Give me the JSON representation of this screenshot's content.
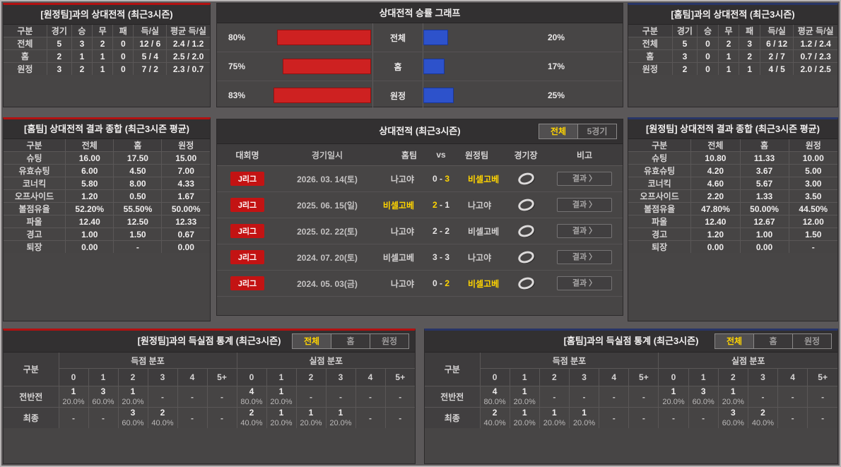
{
  "colors": {
    "red_accent": "#b31111",
    "blue_accent": "#283567",
    "red_bar": "#ce2121",
    "blue_bar": "#2d52cb",
    "highlight_yellow": "#ffd400",
    "league_badge_red": "#c31313"
  },
  "icons": {
    "chevron_right": "〉",
    "stadium": "stadium-ring"
  },
  "panels": {
    "vs_away_record": {
      "title": "[원정팀]과의 상대전적 (최근3시즌)",
      "headers": [
        "구분",
        "경기",
        "승",
        "무",
        "패",
        "득/실",
        "평균 득/실"
      ],
      "rows": [
        [
          "전체",
          "5",
          "3",
          "2",
          "0",
          "12 / 6",
          "2.4 / 1.2"
        ],
        [
          "홈",
          "2",
          "1",
          "1",
          "0",
          "5 / 4",
          "2.5 / 2.0"
        ],
        [
          "원정",
          "3",
          "2",
          "1",
          "0",
          "7 / 2",
          "2.3 / 0.7"
        ]
      ]
    },
    "winrate_graph": {
      "title": "상대전적 승률 그래프",
      "rows": [
        {
          "label": "전체",
          "left_label": "80%",
          "left_value": 80,
          "right_label": "20%",
          "right_value": 20
        },
        {
          "label": "홈",
          "left_label": "75%",
          "left_value": 75,
          "right_label": "17%",
          "right_value": 17
        },
        {
          "label": "원정",
          "left_label": "83%",
          "left_value": 83,
          "right_label": "25%",
          "right_value": 25
        }
      ]
    },
    "vs_home_record": {
      "title": "[홈팀]과의 상대전적 (최근3시즌)",
      "headers": [
        "구분",
        "경기",
        "승",
        "무",
        "패",
        "득/실",
        "평균 득/실"
      ],
      "rows": [
        [
          "전체",
          "5",
          "0",
          "2",
          "3",
          "6 / 12",
          "1.2 / 2.4"
        ],
        [
          "홈",
          "3",
          "0",
          "1",
          "2",
          "2 / 7",
          "0.7 / 2.3"
        ],
        [
          "원정",
          "2",
          "0",
          "1",
          "1",
          "4 / 5",
          "2.0 / 2.5"
        ]
      ]
    },
    "home_summary": {
      "title": "[홈팀] 상대전적 결과 종합 (최근3시즌 평균)",
      "headers": [
        "구분",
        "전체",
        "홈",
        "원정"
      ],
      "rows": [
        [
          "슈팅",
          "16.00",
          "17.50",
          "15.00"
        ],
        [
          "유효슈팅",
          "6.00",
          "4.50",
          "7.00"
        ],
        [
          "코너킥",
          "5.80",
          "8.00",
          "4.33"
        ],
        [
          "오프사이드",
          "1.20",
          "0.50",
          "1.67"
        ],
        [
          "볼점유율",
          "52.20%",
          "55.50%",
          "50.00%"
        ],
        [
          "파울",
          "12.40",
          "12.50",
          "12.33"
        ],
        [
          "경고",
          "1.00",
          "1.50",
          "0.67"
        ],
        [
          "퇴장",
          "0.00",
          "-",
          "0.00"
        ]
      ]
    },
    "h2h": {
      "title": "상대전적 (최근3시즌)",
      "tabs": [
        {
          "label": "전체",
          "active": true
        },
        {
          "label": "5경기",
          "active": false
        }
      ],
      "headers": {
        "league": "대회명",
        "date": "경기일시",
        "home": "홈팀",
        "vs": "vs",
        "away": "원정팀",
        "stadium": "경기장",
        "note": "비고"
      },
      "result_button": "결과",
      "rows": [
        {
          "league": "J리그",
          "date": "2026. 03. 14(토)",
          "home": "나고야",
          "home_score": "0",
          "away_score": "3",
          "away": "비셀고베",
          "winner": "away"
        },
        {
          "league": "J리그",
          "date": "2025. 06. 15(일)",
          "home": "비셀고베",
          "home_score": "2",
          "away_score": "1",
          "away": "나고야",
          "winner": "home"
        },
        {
          "league": "J리그",
          "date": "2025. 02. 22(토)",
          "home": "나고야",
          "home_score": "2",
          "away_score": "2",
          "away": "비셀고베",
          "winner": null
        },
        {
          "league": "J리그",
          "date": "2024. 07. 20(토)",
          "home": "비셀고베",
          "home_score": "3",
          "away_score": "3",
          "away": "나고야",
          "winner": null
        },
        {
          "league": "J리그",
          "date": "2024. 05. 03(금)",
          "home": "나고야",
          "home_score": "0",
          "away_score": "2",
          "away": "비셀고베",
          "winner": "away"
        }
      ]
    },
    "away_summary": {
      "title": "[원정팀] 상대전적 결과 종합 (최근3시즌 평균)",
      "headers": [
        "구분",
        "전체",
        "홈",
        "원정"
      ],
      "rows": [
        [
          "슈팅",
          "10.80",
          "11.33",
          "10.00"
        ],
        [
          "유효슈팅",
          "4.20",
          "3.67",
          "5.00"
        ],
        [
          "코너킥",
          "4.60",
          "5.67",
          "3.00"
        ],
        [
          "오프사이드",
          "2.20",
          "1.33",
          "3.50"
        ],
        [
          "볼점유율",
          "47.80%",
          "50.00%",
          "44.50%"
        ],
        [
          "파울",
          "12.40",
          "12.67",
          "12.00"
        ],
        [
          "경고",
          "1.20",
          "1.00",
          "1.50"
        ],
        [
          "퇴장",
          "0.00",
          "0.00",
          "-"
        ]
      ]
    },
    "away_goal_stats": {
      "title": "[원정팀]과의 득실점 통계 (최근3시즌)",
      "tabs": [
        {
          "label": "전체",
          "active": true
        },
        {
          "label": "홈",
          "active": false
        },
        {
          "label": "원정",
          "active": false
        }
      ],
      "col_label": "구분",
      "groups": [
        "득점 분포",
        "실점 분포"
      ],
      "score_headers": [
        "0",
        "1",
        "2",
        "3",
        "4",
        "5+"
      ],
      "rows": [
        {
          "label": "전반전",
          "goals": [
            {
              "count": "1",
              "pct": "20.0%"
            },
            {
              "count": "3",
              "pct": "60.0%"
            },
            {
              "count": "1",
              "pct": "20.0%"
            },
            null,
            null,
            null
          ],
          "conceded": [
            {
              "count": "4",
              "pct": "80.0%"
            },
            {
              "count": "1",
              "pct": "20.0%"
            },
            null,
            null,
            null,
            null
          ]
        },
        {
          "label": "최종",
          "goals": [
            null,
            null,
            {
              "count": "3",
              "pct": "60.0%"
            },
            {
              "count": "2",
              "pct": "40.0%"
            },
            null,
            null
          ],
          "conceded": [
            {
              "count": "2",
              "pct": "40.0%"
            },
            {
              "count": "1",
              "pct": "20.0%"
            },
            {
              "count": "1",
              "pct": "20.0%"
            },
            {
              "count": "1",
              "pct": "20.0%"
            },
            null,
            null
          ]
        }
      ]
    },
    "home_goal_stats": {
      "title": "[홈팀]과의 득실점 통계 (최근3시즌)",
      "tabs": [
        {
          "label": "전체",
          "active": true
        },
        {
          "label": "홈",
          "active": false
        },
        {
          "label": "원정",
          "active": false
        }
      ],
      "col_label": "구분",
      "groups": [
        "득점 분포",
        "실점 분포"
      ],
      "score_headers": [
        "0",
        "1",
        "2",
        "3",
        "4",
        "5+"
      ],
      "rows": [
        {
          "label": "전반전",
          "goals": [
            {
              "count": "4",
              "pct": "80.0%"
            },
            {
              "count": "1",
              "pct": "20.0%"
            },
            null,
            null,
            null,
            null
          ],
          "conceded": [
            {
              "count": "1",
              "pct": "20.0%"
            },
            {
              "count": "3",
              "pct": "60.0%"
            },
            {
              "count": "1",
              "pct": "20.0%"
            },
            null,
            null,
            null
          ]
        },
        {
          "label": "최종",
          "goals": [
            {
              "count": "2",
              "pct": "40.0%"
            },
            {
              "count": "1",
              "pct": "20.0%"
            },
            {
              "count": "1",
              "pct": "20.0%"
            },
            {
              "count": "1",
              "pct": "20.0%"
            },
            null,
            null
          ],
          "conceded": [
            null,
            null,
            {
              "count": "3",
              "pct": "60.0%"
            },
            {
              "count": "2",
              "pct": "40.0%"
            },
            null,
            null
          ]
        }
      ]
    }
  },
  "chart_data": {
    "type": "bar",
    "orientation": "horizontal",
    "title": "상대전적 승률 그래프",
    "categories": [
      "전체",
      "홈",
      "원정"
    ],
    "series": [
      {
        "name": "red_left",
        "values": [
          80,
          75,
          83
        ]
      },
      {
        "name": "blue_right",
        "values": [
          20,
          17,
          25
        ]
      }
    ],
    "unit": "%",
    "xlim": [
      0,
      100
    ],
    "grid": false,
    "legend_position": "none"
  }
}
